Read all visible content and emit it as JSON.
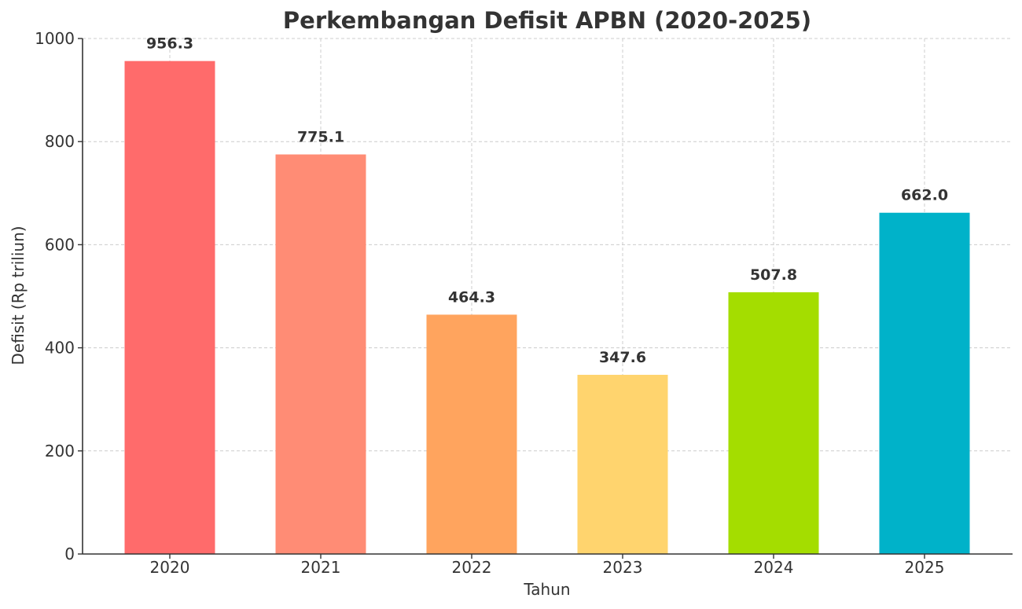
{
  "chart_data": {
    "type": "bar",
    "title": "Perkembangan Defisit APBN (2020-2025)",
    "xlabel": "Tahun",
    "ylabel": "Defisit (Rp triliun)",
    "categories": [
      "2020",
      "2021",
      "2022",
      "2023",
      "2024",
      "2025"
    ],
    "values": [
      956.3,
      775.1,
      464.3,
      347.6,
      507.8,
      662.0
    ],
    "value_labels": [
      "956.3",
      "775.1",
      "464.3",
      "347.6",
      "507.8",
      "662.0"
    ],
    "colors": [
      "#FF6B6B",
      "#FF8C75",
      "#FFA45E",
      "#FFD46E",
      "#A4DD00",
      "#00B2C9"
    ],
    "ylim": [
      0,
      1000
    ],
    "yticks": [
      0,
      200,
      400,
      600,
      800,
      1000
    ],
    "ytick_labels": [
      "0",
      "200",
      "400",
      "600",
      "800",
      "1000"
    ],
    "grid": true,
    "legend": "none"
  }
}
